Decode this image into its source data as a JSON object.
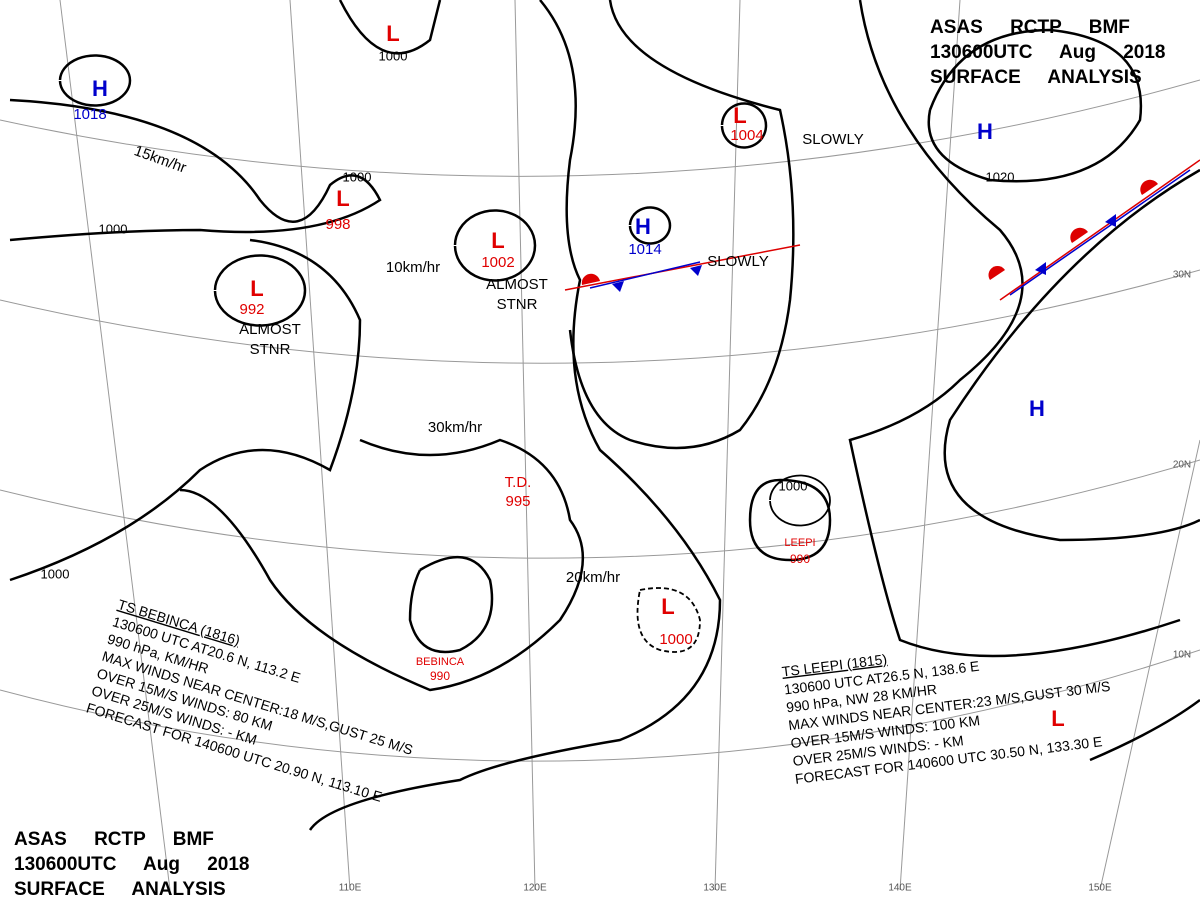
{
  "header_top": {
    "lines": [
      "ASAS RCTP BMF",
      "130600UTC Aug 2018",
      "SURFACE ANALYSIS"
    ]
  },
  "header_bottom": {
    "lines": [
      "ASAS RCTP BMF",
      "130600UTC Aug 2018",
      "SURFACE ANALYSIS"
    ]
  },
  "systems": [
    {
      "symbol": "H",
      "pressure": "1018"
    },
    {
      "symbol": "L"
    },
    {
      "symbol": "L",
      "pressure": "998"
    },
    {
      "symbol": "L",
      "pressure": "992"
    },
    {
      "symbol": "L",
      "pressure": "1002"
    },
    {
      "symbol": "H",
      "pressure": "1014"
    },
    {
      "symbol": "L",
      "pressure": "1004"
    },
    {
      "symbol": "H"
    },
    {
      "symbol": "H"
    },
    {
      "symbol": "L",
      "pressure": "1000"
    },
    {
      "symbol": "L"
    }
  ],
  "isobar_labels": [
    "1000",
    "1000",
    "1000",
    "1000",
    "1020",
    "1000"
  ],
  "motion_labels": [
    "15km/hr",
    "10km/hr",
    "30km/hr",
    "20km/hr",
    "SLOWLY",
    "SLOWLY"
  ],
  "stationary_notes": [
    {
      "lines": [
        "ALMOST",
        "STNR"
      ]
    },
    {
      "lines": [
        "ALMOST",
        "STNR"
      ]
    }
  ],
  "storm_labels": [
    {
      "name": "T.D.",
      "pressure": "995"
    },
    {
      "name": "BEBINCA",
      "pressure": "990"
    },
    {
      "name": "LEEPI",
      "pressure": "990"
    }
  ],
  "storm_blocks": [
    {
      "lines": [
        "TS BEBINCA (1816)",
        "130600 UTC AT20.6 N, 113.2 E",
        "990 hPa, KM/HR",
        "MAX WINDS NEAR CENTER:18 M/S,GUST 25 M/S",
        "OVER 15M/S WINDS: 80 KM",
        "OVER 25M/S WINDS: - KM",
        "FORECAST FOR 140600 UTC 20.90 N, 113.10 E"
      ]
    },
    {
      "lines": [
        "TS LEEPI (1815)",
        "130600 UTC AT26.5 N, 138.6 E",
        "990 hPa, NW 28 KM/HR",
        "MAX WINDS NEAR CENTER:23 M/S,GUST 30 M/S",
        "OVER 15M/S WINDS: 100 KM",
        "OVER 25M/S WINDS: - KM",
        "FORECAST FOR 140600 UTC 30.50 N, 133.30 E"
      ]
    }
  ],
  "graticule_labels": [
    "110E",
    "120E",
    "130E",
    "140E",
    "150E",
    "30N",
    "20N",
    "10N"
  ]
}
